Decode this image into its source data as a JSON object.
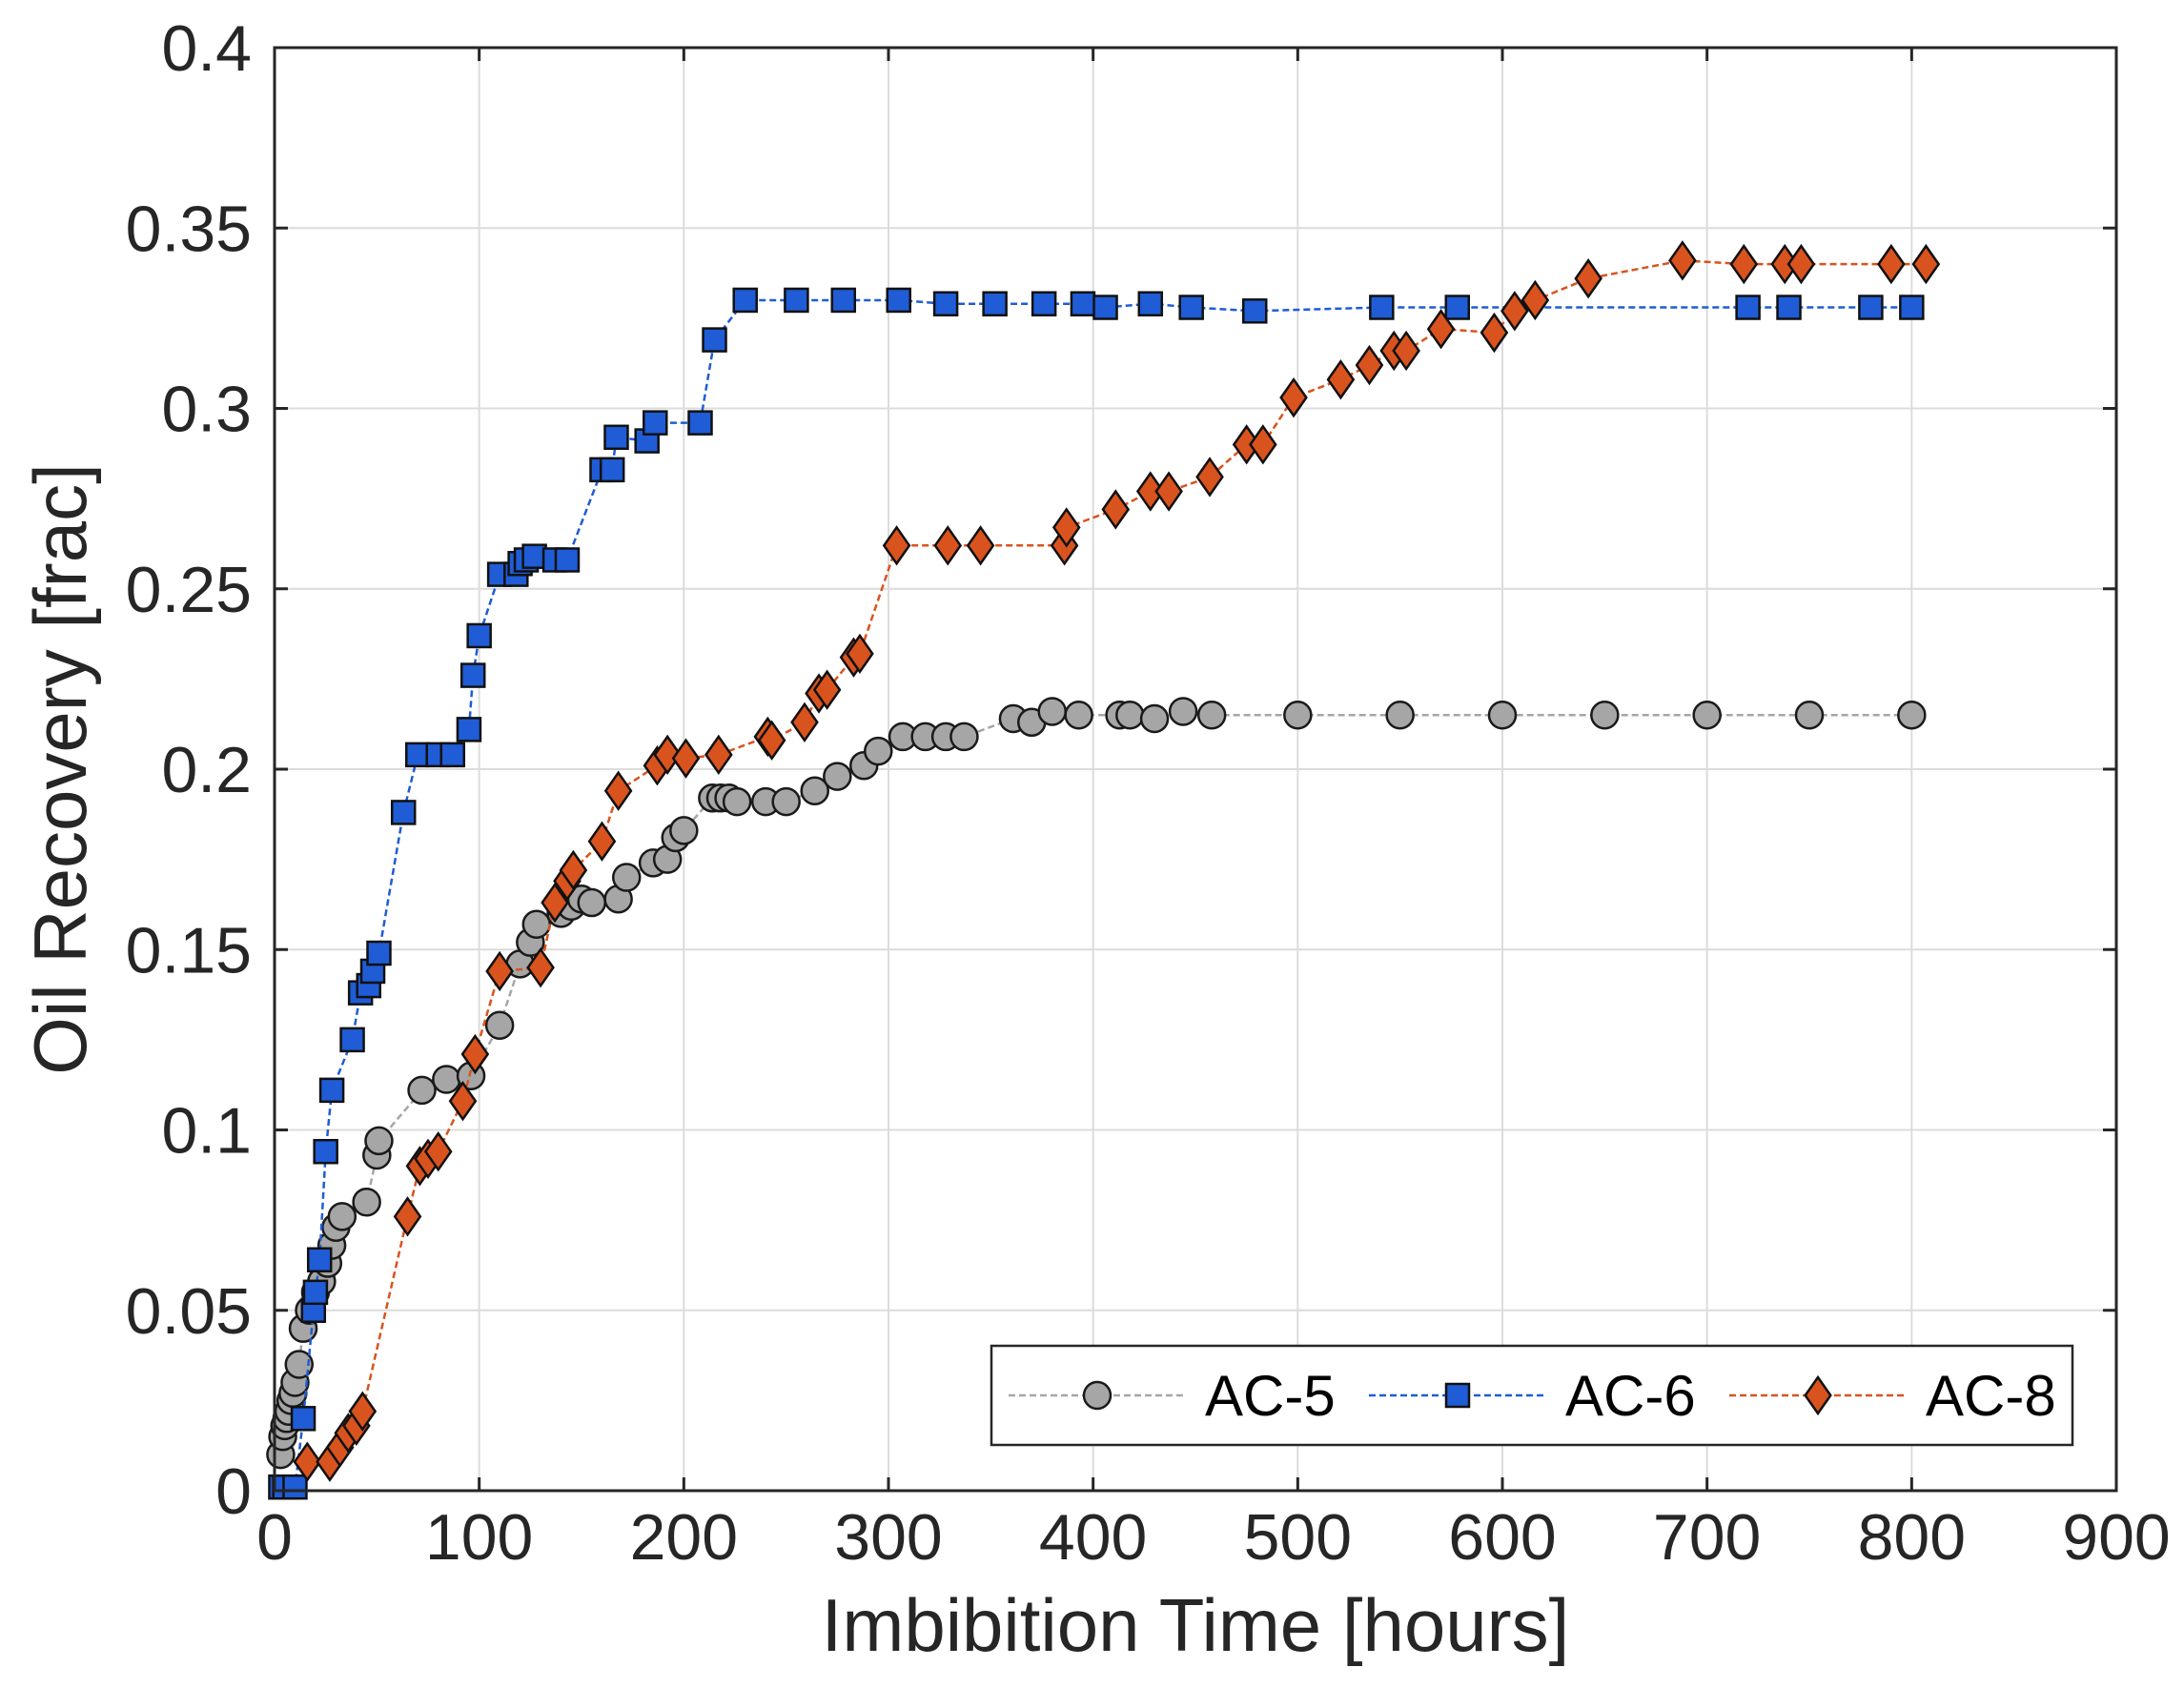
{
  "chart_data": {
    "type": "line",
    "title": "",
    "xlabel": "Imbibition Time [hours]",
    "ylabel": "Oil Recovery [frac]",
    "xlim": [
      0,
      900
    ],
    "ylim": [
      0,
      0.4
    ],
    "grid": true,
    "legend_position": "bottom-right",
    "legend_orientation": "horizontal",
    "xticks": [
      0,
      100,
      200,
      300,
      400,
      500,
      600,
      700,
      800,
      900
    ],
    "xtick_labels": [
      "0",
      "100",
      "200",
      "300",
      "400",
      "500",
      "600",
      "700",
      "800",
      "900"
    ],
    "yticks": [
      0,
      0.05,
      0.1,
      0.15,
      0.2,
      0.25,
      0.3,
      0.35,
      0.4
    ],
    "ytick_labels": [
      "0",
      "0.05",
      "0.1",
      "0.15",
      "0.2",
      "0.25",
      "0.3",
      "0.35",
      "0.4"
    ],
    "series": [
      {
        "name": "AC-5",
        "marker": "circle",
        "color": "#A6A6A6",
        "line_color": "#A6A6A6",
        "x": [
          3,
          4,
          5,
          6,
          7,
          8,
          9,
          10,
          12,
          14,
          17,
          20,
          23,
          26,
          28,
          30,
          33,
          45,
          50,
          51,
          72,
          84,
          96,
          110,
          120,
          125,
          128,
          140,
          145,
          150,
          155,
          168,
          172,
          185,
          192,
          196,
          200,
          214,
          218,
          222,
          226,
          240,
          250,
          264,
          275,
          288,
          295,
          307,
          318,
          328,
          337,
          361,
          370,
          380,
          393,
          413,
          418,
          430,
          444,
          458,
          500,
          550,
          600,
          650,
          700,
          750,
          800
        ],
        "y": [
          0.01,
          0.015,
          0.018,
          0.02,
          0.022,
          0.025,
          0.027,
          0.03,
          0.035,
          0.045,
          0.05,
          0.055,
          0.058,
          0.063,
          0.068,
          0.073,
          0.076,
          0.08,
          0.093,
          0.097,
          0.111,
          0.114,
          0.115,
          0.129,
          0.146,
          0.152,
          0.157,
          0.16,
          0.162,
          0.164,
          0.163,
          0.164,
          0.17,
          0.174,
          0.175,
          0.181,
          0.183,
          0.192,
          0.192,
          0.192,
          0.191,
          0.191,
          0.191,
          0.194,
          0.198,
          0.201,
          0.205,
          0.209,
          0.209,
          0.209,
          0.209,
          0.214,
          0.213,
          0.216,
          0.215,
          0.215,
          0.215,
          0.214,
          0.216,
          0.215,
          0.215,
          0.215,
          0.215,
          0.215,
          0.215,
          0.215,
          0.215
        ]
      },
      {
        "name": "AC-6",
        "marker": "square",
        "color": "#1F5CD6",
        "line_color": "#1F5CD6",
        "x": [
          3,
          5,
          10,
          14,
          19,
          20,
          22,
          25,
          28,
          38,
          42,
          46,
          48,
          51,
          63,
          70,
          80,
          87,
          95,
          97,
          100,
          110,
          118,
          120,
          123,
          127,
          137,
          143,
          160,
          165,
          167,
          182,
          186,
          208,
          215,
          230,
          255,
          278,
          305,
          328,
          352,
          376,
          395,
          406,
          428,
          448,
          479,
          541,
          578,
          720,
          740,
          780,
          800
        ],
        "y": [
          0.001,
          0.001,
          0.001,
          0.02,
          0.05,
          0.055,
          0.064,
          0.094,
          0.111,
          0.125,
          0.138,
          0.14,
          0.144,
          0.149,
          0.188,
          0.204,
          0.204,
          0.204,
          0.211,
          0.226,
          0.237,
          0.254,
          0.254,
          0.257,
          0.258,
          0.259,
          0.258,
          0.258,
          0.283,
          0.283,
          0.292,
          0.291,
          0.296,
          0.296,
          0.319,
          0.33,
          0.33,
          0.33,
          0.33,
          0.329,
          0.329,
          0.329,
          0.329,
          0.328,
          0.329,
          0.328,
          0.327,
          0.328,
          0.328,
          0.328,
          0.328,
          0.328,
          0.328
        ]
      },
      {
        "name": "AC-8",
        "marker": "diamond",
        "color": "#D9531E",
        "line_color": "#D9531E",
        "x": [
          16,
          27,
          32,
          36,
          40,
          43,
          65,
          71,
          75,
          80,
          92,
          98,
          110,
          130,
          137,
          143,
          146,
          160,
          168,
          187,
          192,
          201,
          217,
          241,
          243,
          259,
          266,
          270,
          283,
          286,
          304,
          329,
          345,
          386,
          387,
          411,
          428,
          437,
          457,
          475,
          483,
          498,
          521,
          535,
          547,
          553,
          570,
          596,
          606,
          616,
          642,
          688,
          718,
          738,
          746,
          790,
          807
        ],
        "y": [
          0.008,
          0.008,
          0.012,
          0.016,
          0.018,
          0.022,
          0.076,
          0.09,
          0.092,
          0.094,
          0.108,
          0.121,
          0.144,
          0.145,
          0.163,
          0.169,
          0.172,
          0.18,
          0.194,
          0.201,
          0.204,
          0.203,
          0.204,
          0.209,
          0.208,
          0.213,
          0.221,
          0.222,
          0.231,
          0.232,
          0.262,
          0.262,
          0.262,
          0.262,
          0.267,
          0.272,
          0.277,
          0.277,
          0.281,
          0.29,
          0.29,
          0.303,
          0.308,
          0.312,
          0.316,
          0.316,
          0.322,
          0.321,
          0.327,
          0.33,
          0.336,
          0.341,
          0.34,
          0.34,
          0.34,
          0.34,
          0.34
        ]
      }
    ]
  }
}
